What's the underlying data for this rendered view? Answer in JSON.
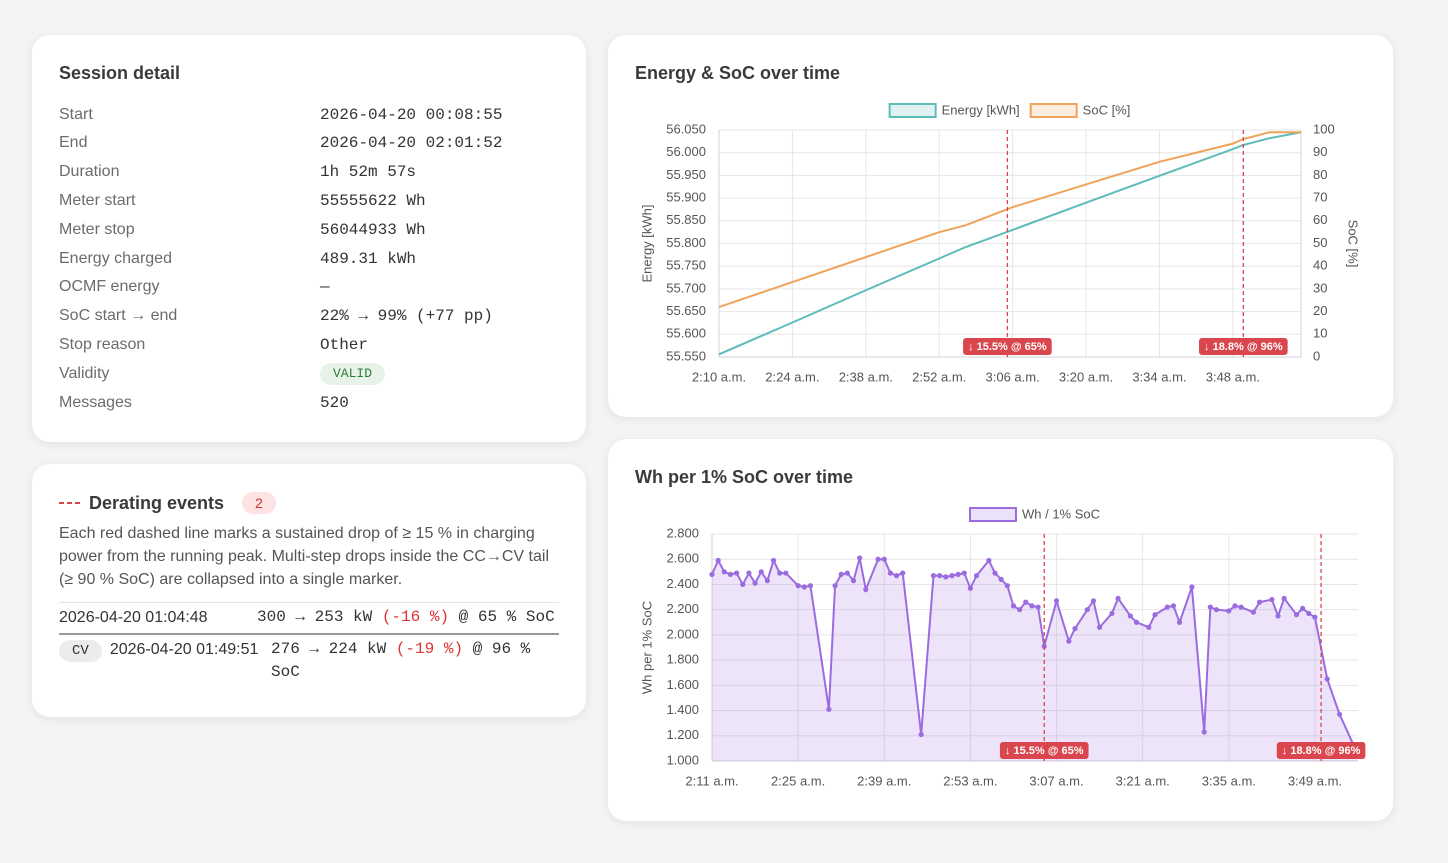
{
  "session_detail": {
    "title": "Session detail",
    "rows": [
      {
        "label": "Start",
        "value": "2026-04-20 00:08:55"
      },
      {
        "label": "End",
        "value": "2026-04-20 02:01:52"
      },
      {
        "label": "Duration",
        "value": "1h 52m 57s"
      },
      {
        "label": "Meter start",
        "value": "55555622 Wh"
      },
      {
        "label": "Meter stop",
        "value": "56044933 Wh"
      },
      {
        "label": "Energy charged",
        "value": "489.31 kWh"
      },
      {
        "label": "OCMF energy",
        "value": "—"
      },
      {
        "label": "SoC start → end",
        "value": "22% → 99% (+77 pp)"
      },
      {
        "label": "Stop reason",
        "value": "Other"
      },
      {
        "label": "Validity",
        "value": "VALID",
        "badge": true
      },
      {
        "label": "Messages",
        "value": "520"
      }
    ]
  },
  "derating": {
    "title": "Derating events",
    "count": 2,
    "description": "Each red dashed line marks a sustained drop of ≥ 15 % in charging power from the running peak. Multi-step drops inside the CC→CV tail (≥ 90 % SoC) are collapsed into a single marker.",
    "events": [
      {
        "time": "2026-04-20 01:04:48",
        "power": "300 → 253 kW",
        "change": "(-16 %)",
        "soc": "@ 65 % SoC"
      },
      {
        "phase": "CV",
        "time": "2026-04-20 01:49:51",
        "power": "276 → 224 kW",
        "change": "(-19 %)",
        "soc": "@ 96 % SoC"
      }
    ]
  },
  "chart_data": [
    {
      "type": "line",
      "title": "Energy & SoC over time",
      "ylabel": "Energy [kWh]",
      "y2label": "SoC [%]",
      "x": [
        "2:10 a.m.",
        "2:24 a.m.",
        "2:38 a.m.",
        "2:52 a.m.",
        "2:57 a.m.",
        "3:06 a.m.",
        "3:20 a.m.",
        "3:34 a.m.",
        "3:48 a.m.",
        "3:50 a.m.",
        "3:55 a.m.",
        "4:01 a.m."
      ],
      "series": [
        {
          "name": "Energy [kWh]",
          "color": "#5dbcb8",
          "values": [
            55556,
            55626,
            55697,
            55767,
            55792,
            55830,
            55890,
            55949,
            56008,
            56017,
            56032,
            56045
          ]
        },
        {
          "name": "SoC [%]",
          "color": "#f0a35a",
          "axis": "y2",
          "values": [
            22,
            33,
            44,
            55,
            58,
            66,
            76,
            86,
            94,
            96,
            99,
            99
          ]
        }
      ],
      "xlim": [
        "2:10 a.m.",
        "4:01 a.m."
      ],
      "xticks": [
        "2:10 a.m.",
        "2:24 a.m.",
        "2:38 a.m.",
        "2:52 a.m.",
        "3:06 a.m.",
        "3:20 a.m.",
        "3:34 a.m.",
        "3:48 a.m."
      ],
      "ylim": [
        55550,
        56050
      ],
      "yticks": [
        {
          "value": 55550,
          "label": "55.550"
        },
        {
          "value": 55600,
          "label": "55.600"
        },
        {
          "value": 55650,
          "label": "55.650"
        },
        {
          "value": 55700,
          "label": "55.700"
        },
        {
          "value": 55750,
          "label": "55.750"
        },
        {
          "value": 55800,
          "label": "55.800"
        },
        {
          "value": 55850,
          "label": "55.850"
        },
        {
          "value": 55900,
          "label": "55.900"
        },
        {
          "value": 55950,
          "label": "55.950"
        },
        {
          "value": 56000,
          "label": "56.000"
        },
        {
          "value": 56050,
          "label": "56.050"
        }
      ],
      "y2lim": [
        0,
        100
      ],
      "y2ticks": [
        0,
        10,
        20,
        30,
        40,
        50,
        60,
        70,
        80,
        90,
        100
      ],
      "grid": true,
      "legend": "top",
      "annotations": [
        {
          "x": "3:05 a.m.",
          "label": "↓ 15.5% @ 65%"
        },
        {
          "x": "3:50 a.m.",
          "label": "↓ 18.8% @ 96%"
        }
      ],
      "annotation_color": "#d9464d"
    },
    {
      "type": "line",
      "title": "Wh per 1% SoC over time",
      "ylabel": "Wh per 1% SoC",
      "x": [
        "2:11 a.m.",
        "2:12 a.m.",
        "2:13 a.m.",
        "2:14 a.m.",
        "2:15 a.m.",
        "2:16 a.m.",
        "2:17 a.m.",
        "2:18 a.m.",
        "2:19 a.m.",
        "2:20 a.m.",
        "2:21 a.m.",
        "2:22 a.m.",
        "2:23 a.m.",
        "2:25 a.m.",
        "2:26 a.m.",
        "2:27 a.m.",
        "2:30 a.m.",
        "2:31 a.m.",
        "2:32 a.m.",
        "2:33 a.m.",
        "2:34 a.m.",
        "2:35 a.m.",
        "2:36 a.m.",
        "2:38 a.m.",
        "2:39 a.m.",
        "2:40 a.m.",
        "2:41 a.m.",
        "2:42 a.m.",
        "2:45 a.m.",
        "2:47 a.m.",
        "2:48 a.m.",
        "2:49 a.m.",
        "2:50 a.m.",
        "2:51 a.m.",
        "2:52 a.m.",
        "2:53 a.m.",
        "2:54 a.m.",
        "2:56 a.m.",
        "2:57 a.m.",
        "2:58 a.m.",
        "2:59 a.m.",
        "3:00 a.m.",
        "3:01 a.m.",
        "3:02 a.m.",
        "3:03 a.m.",
        "3:04 a.m.",
        "3:05 a.m.",
        "3:07 a.m.",
        "3:09 a.m.",
        "3:10 a.m.",
        "3:12 a.m.",
        "3:13 a.m.",
        "3:14 a.m.",
        "3:16 a.m.",
        "3:17 a.m.",
        "3:19 a.m.",
        "3:20 a.m.",
        "3:22 a.m.",
        "3:23 a.m.",
        "3:25 a.m.",
        "3:26 a.m.",
        "3:27 a.m.",
        "3:29 a.m.",
        "3:31 a.m.",
        "3:32 a.m.",
        "3:33 a.m.",
        "3:35 a.m.",
        "3:36 a.m.",
        "3:37 a.m.",
        "3:39 a.m.",
        "3:40 a.m.",
        "3:42 a.m.",
        "3:43 a.m.",
        "3:44 a.m.",
        "3:46 a.m.",
        "3:47 a.m.",
        "3:48 a.m.",
        "3:49 a.m.",
        "3:51 a.m.",
        "3:53 a.m.",
        "3:56 a.m."
      ],
      "series": [
        {
          "name": "Wh / 1% SoC",
          "color": "#9b6be0",
          "fill": true,
          "points": true,
          "values": [
            2480,
            2590,
            2500,
            2480,
            2490,
            2400,
            2490,
            2410,
            2500,
            2430,
            2590,
            2490,
            2490,
            2390,
            2380,
            2390,
            1410,
            2390,
            2480,
            2490,
            2430,
            2610,
            2360,
            2600,
            2600,
            2490,
            2470,
            2490,
            1210,
            2470,
            2470,
            2460,
            2470,
            2480,
            2490,
            2370,
            2470,
            2590,
            2490,
            2440,
            2390,
            2230,
            2200,
            2260,
            2230,
            2220,
            1910,
            2270,
            1950,
            2050,
            2200,
            2270,
            2060,
            2170,
            2290,
            2150,
            2100,
            2060,
            2160,
            2220,
            2230,
            2100,
            2380,
            1230,
            2220,
            2200,
            2190,
            2230,
            2220,
            2180,
            2260,
            2280,
            2150,
            2290,
            2160,
            2210,
            2170,
            2140,
            1650,
            1370,
            1050
          ]
        }
      ],
      "xlim": [
        "2:11 a.m.",
        "3:56 a.m."
      ],
      "xticks": [
        "2:11 a.m.",
        "2:25 a.m.",
        "2:39 a.m.",
        "2:53 a.m.",
        "3:07 a.m.",
        "3:21 a.m.",
        "3:35 a.m.",
        "3:49 a.m."
      ],
      "ylim": [
        1000,
        2800
      ],
      "yticks": [
        {
          "value": 1000,
          "label": "1.000"
        },
        {
          "value": 1200,
          "label": "1.200"
        },
        {
          "value": 1400,
          "label": "1.400"
        },
        {
          "value": 1600,
          "label": "1.600"
        },
        {
          "value": 1800,
          "label": "1.800"
        },
        {
          "value": 2000,
          "label": "2.000"
        },
        {
          "value": 2200,
          "label": "2.200"
        },
        {
          "value": 2400,
          "label": "2.400"
        },
        {
          "value": 2600,
          "label": "2.600"
        },
        {
          "value": 2800,
          "label": "2.800"
        }
      ],
      "grid": true,
      "legend": "top",
      "annotations": [
        {
          "x": "3:05 a.m.",
          "label": "↓ 15.5% @ 65%"
        },
        {
          "x": "3:50 a.m.",
          "label": "↓ 18.8% @ 96%"
        }
      ],
      "annotation_color": "#d9464d"
    }
  ]
}
